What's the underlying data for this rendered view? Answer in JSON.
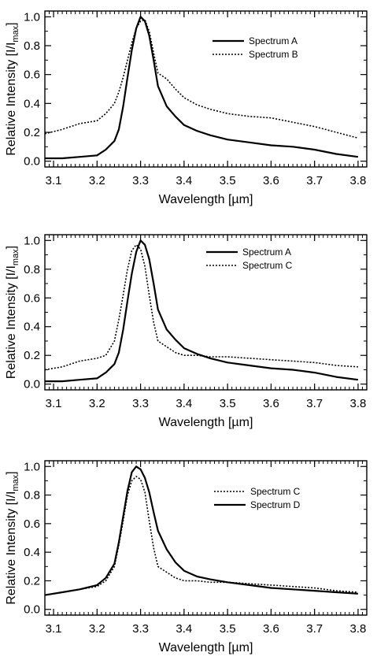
{
  "chart_data": [
    {
      "type": "line",
      "xlabel": "Wavelength [µm]",
      "ylabel": "Relative Intensity [I/I",
      "ylabel_sub": "max",
      "ylabel_close": "]",
      "xlim": [
        3.08,
        3.82
      ],
      "ylim": [
        -0.04,
        1.04
      ],
      "xticks": [
        3.1,
        3.2,
        3.3,
        3.4,
        3.5,
        3.6,
        3.7,
        3.8
      ],
      "xtick_labels": [
        "3.1",
        "3.2",
        "3.3",
        "3.4",
        "3.5",
        "3.6",
        "3.7",
        "3.8"
      ],
      "yticks": [
        0.0,
        0.2,
        0.4,
        0.6,
        0.8,
        1.0
      ],
      "ytick_labels": [
        "0.0",
        "0.2",
        "0.4",
        "0.6",
        "0.8",
        "1.0"
      ],
      "grid": false,
      "legend_position": "top-right",
      "series": [
        {
          "name": "Spectrum A",
          "style": "solid",
          "x": [
            3.08,
            3.12,
            3.16,
            3.2,
            3.22,
            3.24,
            3.25,
            3.26,
            3.27,
            3.28,
            3.29,
            3.3,
            3.31,
            3.32,
            3.33,
            3.34,
            3.36,
            3.38,
            3.4,
            3.43,
            3.46,
            3.5,
            3.55,
            3.6,
            3.65,
            3.7,
            3.75,
            3.8
          ],
          "y": [
            0.02,
            0.02,
            0.03,
            0.04,
            0.08,
            0.14,
            0.22,
            0.38,
            0.58,
            0.77,
            0.92,
            1.0,
            0.97,
            0.87,
            0.7,
            0.52,
            0.38,
            0.31,
            0.25,
            0.21,
            0.18,
            0.15,
            0.13,
            0.11,
            0.1,
            0.08,
            0.05,
            0.03
          ]
        },
        {
          "name": "Spectrum B",
          "style": "dotted",
          "x": [
            3.08,
            3.12,
            3.16,
            3.2,
            3.22,
            3.24,
            3.25,
            3.26,
            3.27,
            3.28,
            3.29,
            3.3,
            3.31,
            3.32,
            3.33,
            3.34,
            3.36,
            3.38,
            3.4,
            3.43,
            3.46,
            3.5,
            3.55,
            3.6,
            3.65,
            3.7,
            3.75,
            3.8
          ],
          "y": [
            0.19,
            0.22,
            0.26,
            0.28,
            0.33,
            0.4,
            0.48,
            0.58,
            0.7,
            0.82,
            0.92,
            0.97,
            0.98,
            0.9,
            0.75,
            0.61,
            0.57,
            0.5,
            0.44,
            0.39,
            0.36,
            0.33,
            0.31,
            0.3,
            0.27,
            0.24,
            0.2,
            0.16
          ]
        }
      ]
    },
    {
      "type": "line",
      "xlabel": "Wavelength [µm]",
      "ylabel": "Relative Intensity [I/I",
      "ylabel_sub": "max",
      "ylabel_close": "]",
      "xlim": [
        3.08,
        3.82
      ],
      "ylim": [
        -0.04,
        1.04
      ],
      "xticks": [
        3.1,
        3.2,
        3.3,
        3.4,
        3.5,
        3.6,
        3.7,
        3.8
      ],
      "xtick_labels": [
        "3.1",
        "3.2",
        "3.3",
        "3.4",
        "3.5",
        "3.6",
        "3.7",
        "3.8"
      ],
      "yticks": [
        0.0,
        0.2,
        0.4,
        0.6,
        0.8,
        1.0
      ],
      "ytick_labels": [
        "0.0",
        "0.2",
        "0.4",
        "0.6",
        "0.8",
        "1.0"
      ],
      "grid": false,
      "legend_position": "top-right",
      "series": [
        {
          "name": "Spectrum A",
          "style": "solid",
          "x": [
            3.08,
            3.12,
            3.16,
            3.2,
            3.22,
            3.24,
            3.25,
            3.26,
            3.27,
            3.28,
            3.29,
            3.3,
            3.31,
            3.32,
            3.33,
            3.34,
            3.36,
            3.38,
            3.4,
            3.43,
            3.46,
            3.5,
            3.55,
            3.6,
            3.65,
            3.7,
            3.75,
            3.8
          ],
          "y": [
            0.02,
            0.02,
            0.03,
            0.04,
            0.08,
            0.14,
            0.22,
            0.38,
            0.58,
            0.77,
            0.92,
            1.0,
            0.97,
            0.87,
            0.7,
            0.52,
            0.38,
            0.31,
            0.25,
            0.21,
            0.18,
            0.15,
            0.13,
            0.11,
            0.1,
            0.08,
            0.05,
            0.03
          ]
        },
        {
          "name": "Spectrum C",
          "style": "dotted",
          "x": [
            3.08,
            3.12,
            3.16,
            3.2,
            3.22,
            3.24,
            3.25,
            3.26,
            3.27,
            3.28,
            3.29,
            3.3,
            3.31,
            3.32,
            3.33,
            3.34,
            3.36,
            3.38,
            3.4,
            3.43,
            3.46,
            3.5,
            3.55,
            3.6,
            3.65,
            3.7,
            3.75,
            3.8
          ],
          "y": [
            0.1,
            0.12,
            0.16,
            0.18,
            0.2,
            0.3,
            0.45,
            0.62,
            0.8,
            0.93,
            0.97,
            0.94,
            0.82,
            0.62,
            0.43,
            0.3,
            0.26,
            0.22,
            0.2,
            0.2,
            0.19,
            0.19,
            0.18,
            0.17,
            0.16,
            0.15,
            0.13,
            0.12
          ]
        }
      ]
    },
    {
      "type": "line",
      "xlabel": "Wavelength [µm]",
      "ylabel": "Relative Intensity [I/I",
      "ylabel_sub": "max",
      "ylabel_close": "]",
      "xlim": [
        3.08,
        3.82
      ],
      "ylim": [
        -0.04,
        1.04
      ],
      "xticks": [
        3.1,
        3.2,
        3.3,
        3.4,
        3.5,
        3.6,
        3.7,
        3.8
      ],
      "xtick_labels": [
        "3.1",
        "3.2",
        "3.3",
        "3.4",
        "3.5",
        "3.6",
        "3.7",
        "3.8"
      ],
      "yticks": [
        0.0,
        0.2,
        0.4,
        0.6,
        0.8,
        1.0
      ],
      "ytick_labels": [
        "0.0",
        "0.2",
        "0.4",
        "0.6",
        "0.8",
        "1.0"
      ],
      "grid": false,
      "legend_position": "top-right",
      "series": [
        {
          "name": "Spectrum C",
          "style": "dotted",
          "x": [
            3.08,
            3.12,
            3.16,
            3.2,
            3.22,
            3.24,
            3.25,
            3.26,
            3.27,
            3.28,
            3.29,
            3.3,
            3.31,
            3.32,
            3.33,
            3.34,
            3.36,
            3.38,
            3.4,
            3.43,
            3.46,
            3.5,
            3.55,
            3.6,
            3.65,
            3.7,
            3.75,
            3.8
          ],
          "y": [
            0.1,
            0.12,
            0.14,
            0.16,
            0.2,
            0.3,
            0.45,
            0.62,
            0.8,
            0.9,
            0.93,
            0.91,
            0.82,
            0.62,
            0.43,
            0.3,
            0.26,
            0.22,
            0.2,
            0.2,
            0.19,
            0.19,
            0.18,
            0.17,
            0.16,
            0.15,
            0.13,
            0.12
          ]
        },
        {
          "name": "Spectrum D",
          "style": "solid",
          "x": [
            3.08,
            3.12,
            3.16,
            3.2,
            3.22,
            3.24,
            3.25,
            3.26,
            3.27,
            3.28,
            3.29,
            3.3,
            3.31,
            3.32,
            3.33,
            3.34,
            3.36,
            3.38,
            3.4,
            3.43,
            3.46,
            3.5,
            3.55,
            3.6,
            3.65,
            3.7,
            3.75,
            3.8
          ],
          "y": [
            0.1,
            0.12,
            0.14,
            0.17,
            0.22,
            0.32,
            0.47,
            0.65,
            0.83,
            0.96,
            1.0,
            0.98,
            0.92,
            0.82,
            0.68,
            0.55,
            0.42,
            0.33,
            0.27,
            0.23,
            0.21,
            0.19,
            0.17,
            0.15,
            0.14,
            0.13,
            0.12,
            0.11
          ]
        }
      ]
    }
  ]
}
